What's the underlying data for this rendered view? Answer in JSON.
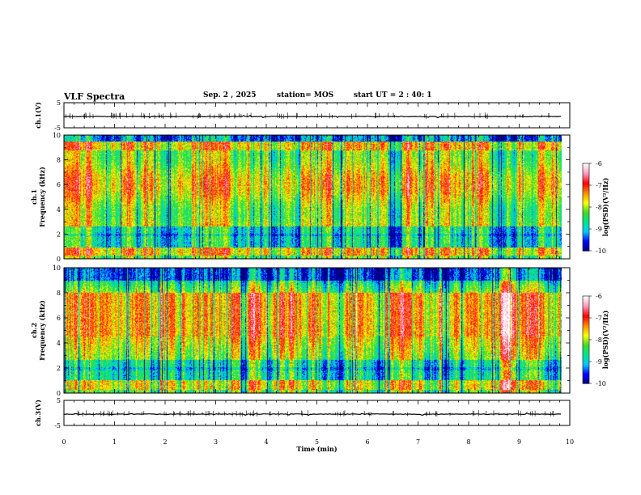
{
  "header": {
    "title": "VLF Spectra",
    "date": "Sep. 2 , 2025",
    "station": "station= MOS",
    "start_ut": "start UT = 2 : 40: 1"
  },
  "chart_data": [
    {
      "type": "line",
      "name": "ch1-waveform",
      "ylabel": "ch.1(V)",
      "ylim": [
        -5,
        5
      ],
      "y_ticks": [
        "5",
        "-5"
      ],
      "level": -0.5,
      "xlim": [
        0,
        10
      ],
      "grid": false
    },
    {
      "type": "heatmap",
      "name": "ch1-spectrogram",
      "ylabel": "ch.1\nFrequency (kHz)",
      "ylim": [
        0,
        10
      ],
      "y_ticks": [
        "0",
        "2",
        "4",
        "6",
        "8",
        "10"
      ],
      "xlim": [
        0,
        9.84
      ],
      "colorbar": {
        "label": "log(PSD)(V²/Hz)",
        "range": [
          -10,
          -6
        ],
        "ticks": [
          "-6",
          "-7",
          "-8",
          "-9",
          "-10"
        ]
      }
    },
    {
      "type": "heatmap",
      "name": "ch2-spectrogram",
      "ylabel": "ch.2\nFrequency (kHz)",
      "ylim": [
        0,
        10
      ],
      "y_ticks": [
        "0",
        "2",
        "4",
        "6",
        "8",
        "10"
      ],
      "xlim": [
        0,
        9.84
      ],
      "colorbar": {
        "label": "log(PSD)(V²/Hz)",
        "range": [
          -10,
          -6
        ],
        "ticks": [
          "-6",
          "-7",
          "-8",
          "-9",
          "-10"
        ]
      }
    },
    {
      "type": "line",
      "name": "ch3-waveform",
      "ylabel": "ch.3(V)",
      "ylim": [
        -5,
        5
      ],
      "y_ticks": [
        "5",
        "-5"
      ],
      "level": -0.5,
      "xlim": [
        0,
        10
      ],
      "grid": false
    }
  ],
  "x_axis": {
    "label": "Time (min)",
    "xlim": [
      0,
      10
    ],
    "ticks": [
      "0",
      "1",
      "2",
      "3",
      "4",
      "5",
      "6",
      "7",
      "8",
      "9",
      "10"
    ]
  },
  "colors": {
    "colormap": [
      "#00007f",
      "#0000ff",
      "#00c8ff",
      "#00e68c",
      "#3cdc28",
      "#ffff00",
      "#ff8c00",
      "#ff0000",
      "#ff96be",
      "#ffffff"
    ]
  }
}
